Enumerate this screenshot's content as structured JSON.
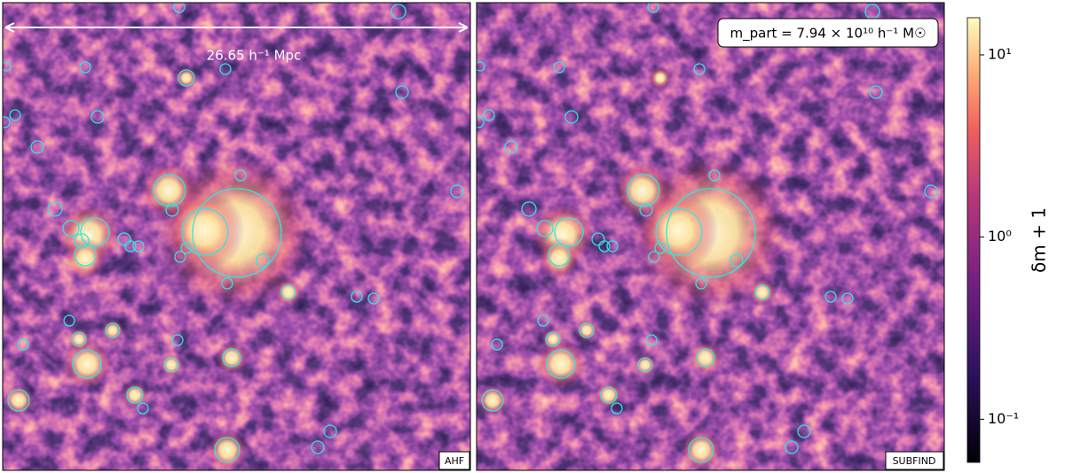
{
  "chart_data": {
    "type": "density-map",
    "panels": [
      {
        "label": "AHF"
      },
      {
        "label": "SUBFIND"
      }
    ],
    "scale_annotation": "26.65 h⁻¹ Mpc",
    "mass_annotation": "m_part = 7.94 × 10¹⁰ h⁻¹ M☉",
    "colorbar": {
      "label": "δm + 1",
      "log": true,
      "ylim": [
        0.058,
        16
      ],
      "yticks": [
        {
          "value": 0.1,
          "label": "10⁻¹"
        },
        {
          "value": 1,
          "label": "10⁰"
        },
        {
          "value": 10,
          "label": "10¹"
        }
      ]
    }
  }
}
